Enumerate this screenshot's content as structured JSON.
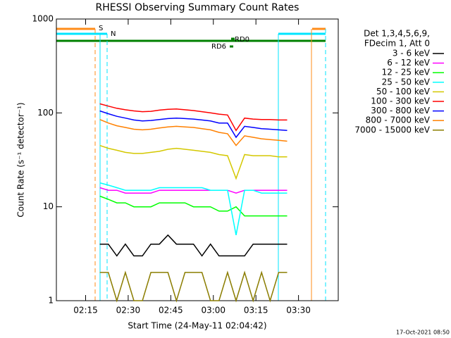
{
  "chart_data": {
    "type": "line",
    "title": "RHESSI Observing Summary Count Rates",
    "xlabel": "Start Time (24-May-11 02:04:42)",
    "ylabel": "Count Rate (s⁻¹ detector⁻¹)",
    "legend_header": [
      "Det 1,3,4,5,6,9,",
      "FDecim 1, Att 0"
    ],
    "footer": "17-Oct-2021 08:50",
    "log_scale": true,
    "xlim": [
      4.7,
      104
    ],
    "xticks": [
      {
        "value": 15,
        "label": "02:15"
      },
      {
        "value": 30,
        "label": "02:30"
      },
      {
        "value": 45,
        "label": "02:45"
      },
      {
        "value": 60,
        "label": "03:00"
      },
      {
        "value": 75,
        "label": "03:15"
      },
      {
        "value": 90,
        "label": "03:30"
      }
    ],
    "ylim": [
      1,
      1000
    ],
    "yticks": [
      1,
      10,
      100,
      1000
    ],
    "flags": [
      {
        "text": "S",
        "color": "#ff8c1a"
      },
      {
        "text": "N",
        "color": "#00e5ff"
      },
      {
        "text": "RD0",
        "color": "#008000"
      },
      {
        "text": "RD6",
        "color": "#008000"
      }
    ],
    "x": [
      20,
      23,
      26,
      29,
      32,
      35,
      38,
      41,
      44,
      47,
      50,
      53,
      56,
      59,
      62,
      65,
      68,
      71,
      74,
      77,
      80,
      83,
      86
    ],
    "series": [
      {
        "name": "3 - 6 keV",
        "color": "#000000",
        "values": [
          4,
          4,
          3,
          4,
          3,
          3,
          4,
          4,
          5,
          4,
          4,
          4,
          3,
          4,
          3,
          3,
          3,
          3,
          4,
          4,
          4,
          4,
          4
        ]
      },
      {
        "name": "6 - 12 keV",
        "color": "#ff00ff",
        "values": [
          16,
          15,
          15,
          14,
          14,
          14,
          14,
          15,
          15,
          15,
          15,
          15,
          15,
          15,
          15,
          15,
          14,
          15,
          15,
          15,
          15,
          15,
          15
        ]
      },
      {
        "name": "12 - 25 keV",
        "color": "#00ff00",
        "values": [
          13,
          12,
          11,
          11,
          10,
          10,
          10,
          11,
          11,
          11,
          11,
          10,
          10,
          10,
          9,
          9,
          10,
          8,
          8,
          8,
          8,
          8,
          8
        ]
      },
      {
        "name": "25 - 50 keV",
        "color": "#00ffff",
        "values": [
          18,
          17,
          16,
          15,
          15,
          15,
          15,
          16,
          16,
          16,
          16,
          16,
          16,
          15,
          15,
          15,
          5,
          15,
          15,
          14,
          14,
          14,
          14
        ]
      },
      {
        "name": "50 - 100 keV",
        "color": "#d4c800",
        "values": [
          45,
          42,
          40,
          38,
          37,
          37,
          38,
          39,
          41,
          42,
          41,
          40,
          39,
          38,
          36,
          35,
          20,
          36,
          35,
          35,
          35,
          34,
          34
        ]
      },
      {
        "name": "100 - 300 keV",
        "color": "#ff0000",
        "values": [
          125,
          118,
          112,
          108,
          105,
          103,
          104,
          107,
          109,
          110,
          108,
          106,
          103,
          100,
          97,
          95,
          65,
          88,
          86,
          85,
          85,
          84,
          84
        ]
      },
      {
        "name": "300 - 800 keV",
        "color": "#0000ff",
        "values": [
          105,
          98,
          92,
          88,
          84,
          82,
          83,
          85,
          87,
          88,
          87,
          86,
          84,
          82,
          78,
          78,
          55,
          72,
          70,
          68,
          67,
          66,
          65
        ]
      },
      {
        "name": "800 - 7000 keV",
        "color": "#ff8000",
        "values": [
          85,
          78,
          73,
          70,
          67,
          66,
          67,
          69,
          71,
          72,
          71,
          70,
          68,
          66,
          62,
          60,
          45,
          57,
          55,
          53,
          52,
          51,
          50
        ]
      },
      {
        "name": "7000 - 15000 keV",
        "color": "#8b7d00",
        "values": [
          2,
          2,
          1,
          2,
          1,
          1,
          2,
          2,
          2,
          1,
          2,
          2,
          2,
          1,
          1,
          2,
          1,
          2,
          1,
          2,
          1,
          2,
          2
        ]
      }
    ]
  }
}
